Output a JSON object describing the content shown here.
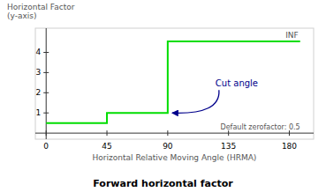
{
  "chart_data": {
    "type": "line",
    "title": "Forward horizontal factor",
    "xlabel": "Horizontal Relative Moving Angle (HRMA)",
    "ylabel": "Horizontal Factor\n(y-axis)",
    "x": [
      0,
      45,
      45,
      90,
      90,
      188
    ],
    "values": [
      0.5,
      0.5,
      1.0,
      1.0,
      4.55,
      4.55
    ],
    "color": "#00dd00",
    "xlim": [
      -8,
      198
    ],
    "ylim": [
      -0.3,
      5.2
    ],
    "xticks": [
      0,
      45,
      90,
      135,
      180
    ],
    "yticks": [
      1,
      2,
      3,
      4
    ],
    "grid": false,
    "annotations": [
      {
        "text": "INF"
      },
      {
        "text": "Default zerofactor: 0.5"
      },
      {
        "text": "Cut angle",
        "color": "#00008b"
      }
    ]
  }
}
